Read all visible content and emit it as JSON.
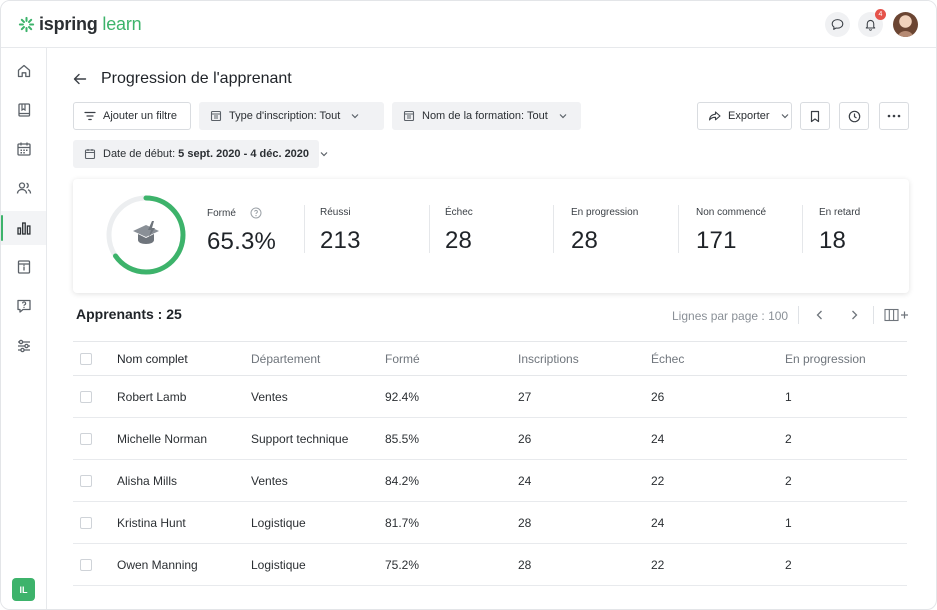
{
  "app": {
    "logo_text_bold": "ispring",
    "logo_text_light": "learn",
    "notification_count": "4",
    "user_initials": "IL",
    "accent_color": "#3db36b"
  },
  "sidebar": {
    "items": [
      {
        "name": "home-icon"
      },
      {
        "name": "book-icon"
      },
      {
        "name": "calendar-icon"
      },
      {
        "name": "users-icon"
      },
      {
        "name": "reports-icon",
        "active": true
      },
      {
        "name": "info-icon"
      },
      {
        "name": "question-icon"
      },
      {
        "name": "settings-sliders-icon"
      }
    ]
  },
  "page": {
    "title": "Progression de l'apprenant"
  },
  "filters": {
    "add_filter": "Ajouter un filtre",
    "enrollment_type": "Type d'inscription: Tout",
    "course_name": "Nom de la formation: Tout",
    "start_date_label": "Date de début:",
    "start_date_value": "5 sept. 2020 - 4 déc. 2020",
    "export": "Exporter"
  },
  "stats": {
    "trained_progress": 0.653,
    "items": [
      {
        "label": "Formé",
        "value": "65.3%"
      },
      {
        "label": "Réussi",
        "value": "213"
      },
      {
        "label": "Échec",
        "value": "28"
      },
      {
        "label": "En progression",
        "value": "28"
      },
      {
        "label": "Non commencé",
        "value": "171"
      },
      {
        "label": "En retard",
        "value": "18"
      }
    ]
  },
  "table": {
    "count_label": "Apprenants : 25",
    "rows_per_page": "Lignes par page : 100",
    "columns": [
      "Nom complet",
      "Département",
      "Formé",
      "Inscriptions",
      "Échec",
      "En progression"
    ],
    "rows": [
      [
        "Robert Lamb",
        "Ventes",
        "92.4%",
        "27",
        "26",
        "1"
      ],
      [
        "Michelle Norman",
        "Support technique",
        "85.5%",
        "26",
        "24",
        "2"
      ],
      [
        "Alisha Mills",
        "Ventes",
        "84.2%",
        "24",
        "22",
        "2"
      ],
      [
        "Kristina Hunt",
        "Logistique",
        "81.7%",
        "28",
        "24",
        "1"
      ],
      [
        "Owen Manning",
        "Logistique",
        "75.2%",
        "28",
        "22",
        "2"
      ]
    ]
  }
}
